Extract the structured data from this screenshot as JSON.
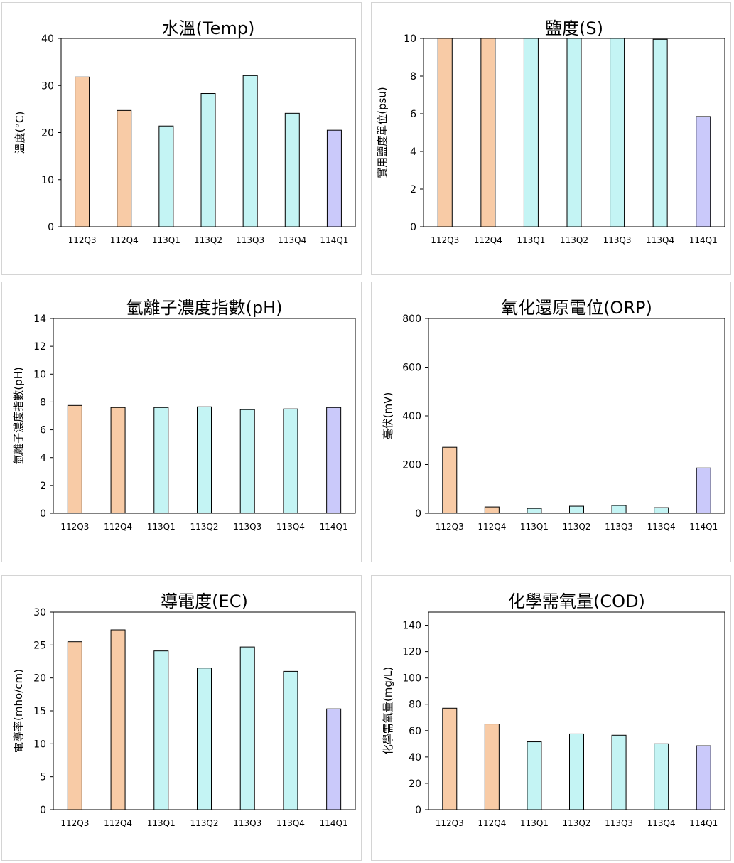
{
  "categories": [
    "112Q3",
    "112Q4",
    "113Q1",
    "113Q2",
    "113Q3",
    "113Q4",
    "114Q1"
  ],
  "colors": {
    "peach": "#f8cba6",
    "cyan": "#c4f4f4",
    "lavender": "#cac9fa",
    "outline": "#000000"
  },
  "bar_color_keys": [
    "peach",
    "peach",
    "cyan",
    "cyan",
    "cyan",
    "cyan",
    "lavender"
  ],
  "chart_data": [
    {
      "id": "temp",
      "type": "bar",
      "title": "水溫(Temp)",
      "ylabel": "溫度(°C)",
      "ylim": [
        0,
        40
      ],
      "yticks": [
        0,
        10,
        20,
        30,
        40
      ],
      "categories": [
        "112Q3",
        "112Q4",
        "113Q1",
        "113Q2",
        "113Q3",
        "113Q4",
        "114Q1"
      ],
      "values": [
        31.8,
        24.7,
        21.4,
        28.3,
        32.1,
        24.1,
        20.5
      ]
    },
    {
      "id": "salinity",
      "type": "bar",
      "title": "鹽度(S)",
      "ylabel": "實用鹽度單位(psu)",
      "ylim": [
        0,
        10
      ],
      "yticks": [
        0,
        2,
        4,
        6,
        8,
        10
      ],
      "categories": [
        "112Q3",
        "112Q4",
        "113Q1",
        "113Q2",
        "113Q3",
        "113Q4",
        "114Q1"
      ],
      "values": [
        10.1,
        10.1,
        10.1,
        10.1,
        10.1,
        9.95,
        5.85
      ]
    },
    {
      "id": "ph",
      "type": "bar",
      "title": "氫離子濃度指數(pH)",
      "ylabel": "氫離子濃度指數(pH)",
      "ylim": [
        0,
        14
      ],
      "yticks": [
        0,
        2,
        4,
        6,
        8,
        10,
        12,
        14
      ],
      "categories": [
        "112Q3",
        "112Q4",
        "113Q1",
        "113Q2",
        "113Q3",
        "113Q4",
        "114Q1"
      ],
      "values": [
        7.75,
        7.6,
        7.6,
        7.65,
        7.45,
        7.5,
        7.6
      ]
    },
    {
      "id": "orp",
      "type": "bar",
      "title": "氧化還原電位(ORP)",
      "ylabel": "毫伏(mV)",
      "ylim": [
        0,
        800
      ],
      "yticks": [
        0,
        200,
        400,
        600,
        800
      ],
      "categories": [
        "112Q3",
        "112Q4",
        "113Q1",
        "113Q2",
        "113Q3",
        "113Q4",
        "114Q1"
      ],
      "values": [
        271,
        26,
        20,
        29,
        32,
        23,
        186
      ]
    },
    {
      "id": "ec",
      "type": "bar",
      "title": "導電度(EC)",
      "ylabel": "電導率(mho/cm)",
      "ylim": [
        0,
        30
      ],
      "yticks": [
        0,
        5,
        10,
        15,
        20,
        25,
        30
      ],
      "categories": [
        "112Q3",
        "112Q4",
        "113Q1",
        "113Q2",
        "113Q3",
        "113Q4",
        "114Q1"
      ],
      "values": [
        25.5,
        27.3,
        24.1,
        21.5,
        24.7,
        21.0,
        15.3
      ]
    },
    {
      "id": "cod",
      "type": "bar",
      "title": "化學需氧量(COD)",
      "ylabel": "化學需氧量(mg/L)",
      "ylim": [
        0,
        150
      ],
      "yticks": [
        0,
        20,
        40,
        60,
        80,
        100,
        120,
        140
      ],
      "categories": [
        "112Q3",
        "112Q4",
        "113Q1",
        "113Q2",
        "113Q3",
        "113Q4",
        "114Q1"
      ],
      "values": [
        77,
        65,
        51.5,
        57.5,
        56.5,
        50,
        48.5
      ]
    }
  ]
}
